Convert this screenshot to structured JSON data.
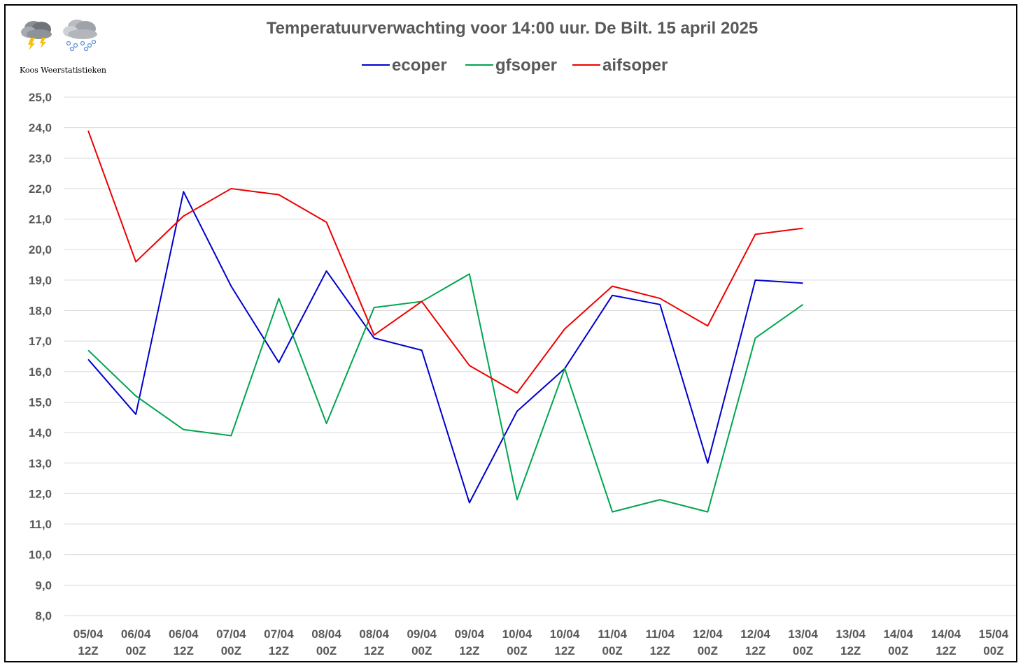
{
  "logo": {
    "caption": "Koos Weerstatistieken",
    "icons": [
      "thunderstorm-cloud-icon",
      "snow-cloud-icon"
    ]
  },
  "chart_data": {
    "type": "line",
    "title": "Temperatuurverwachting voor 14:00 uur. De Bilt. 15 april 2025",
    "xlabel": "",
    "ylabel": "",
    "ylim": [
      8,
      25
    ],
    "ytick_step": 1,
    "ytick_decimals": 1,
    "grid": true,
    "legend_position": "top-center",
    "categories": [
      [
        "05/04",
        "12Z"
      ],
      [
        "06/04",
        "00Z"
      ],
      [
        "06/04",
        "12Z"
      ],
      [
        "07/04",
        "00Z"
      ],
      [
        "07/04",
        "12Z"
      ],
      [
        "08/04",
        "00Z"
      ],
      [
        "08/04",
        "12Z"
      ],
      [
        "09/04",
        "00Z"
      ],
      [
        "09/04",
        "12Z"
      ],
      [
        "10/04",
        "00Z"
      ],
      [
        "10/04",
        "12Z"
      ],
      [
        "11/04",
        "00Z"
      ],
      [
        "11/04",
        "12Z"
      ],
      [
        "12/04",
        "00Z"
      ],
      [
        "12/04",
        "12Z"
      ],
      [
        "13/04",
        "00Z"
      ],
      [
        "13/04",
        "12Z"
      ],
      [
        "14/04",
        "00Z"
      ],
      [
        "14/04",
        "12Z"
      ],
      [
        "15/04",
        "00Z"
      ]
    ],
    "series": [
      {
        "name": "ecoper",
        "color": "#0000CC",
        "values": [
          16.4,
          14.6,
          21.9,
          18.8,
          16.3,
          19.3,
          17.1,
          16.7,
          11.7,
          14.7,
          16.1,
          18.5,
          18.2,
          13.0,
          19.0,
          18.9,
          null,
          null,
          null,
          null
        ]
      },
      {
        "name": "gfsoper",
        "color": "#00A550",
        "values": [
          16.7,
          15.2,
          14.1,
          13.9,
          18.4,
          14.3,
          18.1,
          18.3,
          19.2,
          11.8,
          16.1,
          11.4,
          11.8,
          11.4,
          17.1,
          18.2,
          null,
          null,
          null,
          null
        ]
      },
      {
        "name": "aifsoper",
        "color": "#EE0000",
        "values": [
          23.9,
          19.6,
          21.1,
          22.0,
          21.8,
          20.9,
          17.2,
          18.3,
          16.2,
          15.3,
          17.4,
          18.8,
          18.4,
          17.5,
          20.5,
          20.7,
          null,
          null,
          null,
          null
        ]
      }
    ]
  },
  "colors": {
    "grid": "#D9D9D9",
    "axis_text": "#595959",
    "title_text": "#595959",
    "frame": "#000000"
  }
}
